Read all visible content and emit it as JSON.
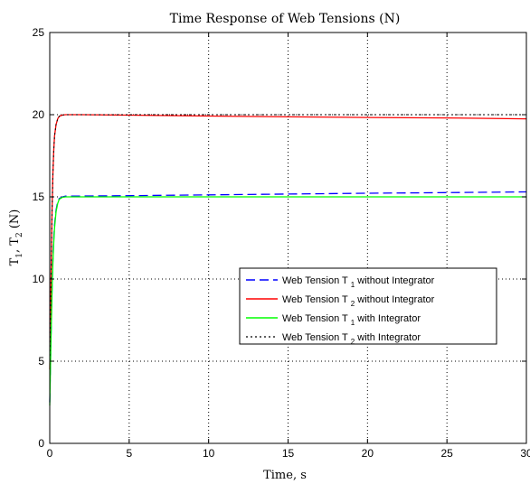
{
  "chart_data": {
    "type": "line",
    "title": "Time Response of Web Tensions (N)",
    "xlabel": "Time, s",
    "ylabel_main": "T",
    "ylabel_sub1": "1",
    "ylabel_sep": ", T",
    "ylabel_sub2": "2",
    "ylabel_tail": " (N)",
    "xlim": [
      0,
      30
    ],
    "ylim": [
      0,
      25
    ],
    "xticks": [
      "0",
      "5",
      "10",
      "15",
      "20",
      "25",
      "30"
    ],
    "yticks": [
      "0",
      "5",
      "10",
      "15",
      "20",
      "25"
    ],
    "grid": "dotted",
    "legend_position": "lower-right",
    "series": [
      {
        "name": "Web Tension T 1 without Integrator",
        "legend_main": "Web Tension T",
        "legend_sub": "1",
        "legend_tail": " without Integrator",
        "color": "#0000ff",
        "dash": "dashed",
        "x": [
          0,
          0.05,
          0.1,
          0.15,
          0.2,
          0.25,
          0.3,
          0.4,
          0.5,
          0.6,
          0.8,
          1.0,
          2,
          5,
          10,
          15,
          20,
          25,
          30
        ],
        "y": [
          2.5,
          5.2,
          7.6,
          9.6,
          11.2,
          12.4,
          13.3,
          14.2,
          14.7,
          14.9,
          15.0,
          15.05,
          15.05,
          15.07,
          15.12,
          15.17,
          15.22,
          15.26,
          15.3
        ]
      },
      {
        "name": "Web Tension T 2 without Integrator",
        "legend_main": "Web Tension T",
        "legend_sub": "2",
        "legend_tail": " without Integrator",
        "color": "#ff0000",
        "dash": "solid",
        "x": [
          0,
          0.05,
          0.1,
          0.15,
          0.2,
          0.25,
          0.3,
          0.4,
          0.5,
          0.6,
          0.8,
          1.0,
          2,
          5,
          10,
          15,
          20,
          25,
          30
        ],
        "y": [
          4.5,
          8.0,
          11.5,
          14.3,
          16.4,
          17.8,
          18.7,
          19.4,
          19.75,
          19.9,
          19.98,
          20.0,
          20.0,
          19.97,
          19.92,
          19.87,
          19.83,
          19.8,
          19.75
        ]
      },
      {
        "name": "Web Tension T 1 with Integrator",
        "legend_main": "Web Tension T",
        "legend_sub": "1",
        "legend_tail": " with Integrator",
        "color": "#00ff00",
        "dash": "solid",
        "x": [
          0,
          0.05,
          0.1,
          0.15,
          0.2,
          0.25,
          0.3,
          0.4,
          0.5,
          0.6,
          0.8,
          1.0,
          2,
          5,
          10,
          15,
          20,
          25,
          30
        ],
        "y": [
          2.3,
          5.0,
          7.4,
          9.4,
          11.0,
          12.2,
          13.1,
          14.1,
          14.6,
          14.85,
          14.97,
          15.0,
          15.0,
          15.0,
          15.0,
          15.0,
          15.0,
          15.0,
          15.0
        ]
      },
      {
        "name": "Web Tension T 2 with Integrator",
        "legend_main": "Web Tension T",
        "legend_sub": "2",
        "legend_tail": " with Integrator",
        "color": "#000000",
        "dash": "dotted",
        "x": [
          0,
          0.05,
          0.1,
          0.15,
          0.2,
          0.25,
          0.3,
          0.4,
          0.5,
          0.6,
          0.8,
          1.0,
          2,
          5,
          10,
          15,
          20,
          25,
          30
        ],
        "y": [
          4.5,
          8.0,
          11.5,
          14.3,
          16.4,
          17.8,
          18.7,
          19.4,
          19.75,
          19.9,
          19.98,
          20.0,
          20.0,
          20.0,
          20.0,
          20.0,
          20.0,
          20.0,
          20.0
        ]
      }
    ]
  }
}
